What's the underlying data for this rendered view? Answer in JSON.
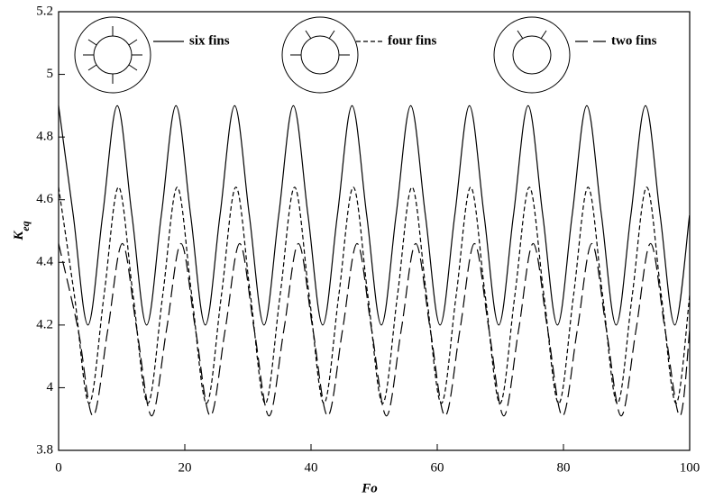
{
  "chart_data": {
    "type": "line",
    "xlabel": "Fo",
    "ylabel": "K",
    "ylabel_subscript": "eq",
    "xlim": [
      0,
      100
    ],
    "xticks": [
      0,
      20,
      40,
      60,
      80,
      100
    ],
    "ylim": [
      3.8,
      5.2
    ],
    "yticks": [
      3.8,
      4,
      4.2,
      4.4,
      4.6,
      4.8,
      5,
      5.2
    ],
    "grid": false,
    "series": [
      {
        "name": "six fins",
        "color": "#000000",
        "dash": "solid",
        "x": [
          0,
          2.325,
          4.65,
          6.975,
          9.3,
          11.625,
          13.95,
          16.275,
          18.6,
          20.925,
          23.25,
          25.575,
          27.9,
          30.225,
          32.55,
          34.875,
          37.2,
          39.525,
          41.85,
          44.175,
          46.5,
          48.825,
          51.15,
          53.475,
          55.8,
          58.125,
          60.45,
          62.775,
          65.1,
          67.425,
          69.75,
          72.075,
          74.4,
          76.725,
          79.05,
          81.375,
          83.7,
          86.025,
          88.35,
          90.675,
          93,
          95.325,
          97.65,
          99.975
        ],
        "values": [
          4.9,
          4.55,
          4.2,
          4.55,
          4.9,
          4.55,
          4.2,
          4.55,
          4.9,
          4.55,
          4.2,
          4.55,
          4.9,
          4.55,
          4.2,
          4.55,
          4.9,
          4.55,
          4.2,
          4.55,
          4.9,
          4.55,
          4.2,
          4.55,
          4.9,
          4.55,
          4.2,
          4.55,
          4.9,
          4.55,
          4.2,
          4.55,
          4.9,
          4.55,
          4.2,
          4.55,
          4.9,
          4.55,
          4.2,
          4.55,
          4.9,
          4.55,
          4.2,
          4.55
        ]
      },
      {
        "name": "four fins",
        "color": "#000000",
        "dash": "dashed",
        "x": [
          0,
          2.5,
          4.85,
          7.2,
          9.5,
          11.8,
          14.15,
          16.5,
          18.8,
          21.1,
          23.45,
          25.8,
          28.1,
          30.4,
          32.75,
          35.1,
          37.4,
          39.7,
          42.05,
          44.4,
          46.7,
          49,
          51.35,
          53.7,
          56,
          58.3,
          60.65,
          63,
          65.3,
          67.6,
          69.95,
          72.3,
          74.6,
          76.9,
          79.25,
          81.6,
          83.9,
          86.2,
          88.55,
          90.9,
          93.2,
          95.5,
          97.85,
          100
        ],
        "values": [
          4.64,
          4.295,
          3.95,
          4.295,
          4.64,
          4.295,
          3.95,
          4.295,
          4.64,
          4.295,
          3.95,
          4.295,
          4.64,
          4.295,
          3.95,
          4.295,
          4.64,
          4.295,
          3.95,
          4.295,
          4.64,
          4.295,
          3.95,
          4.295,
          4.64,
          4.295,
          3.95,
          4.295,
          4.64,
          4.295,
          3.95,
          4.295,
          4.64,
          4.295,
          3.95,
          4.295,
          4.64,
          4.295,
          3.95,
          4.295,
          4.64,
          4.295,
          3.95,
          4.295
        ]
      },
      {
        "name": "two fins",
        "color": "#000000",
        "dash": "longdash",
        "x": [
          0,
          3.1,
          5.45,
          7.8,
          10.1,
          12.4,
          14.75,
          17.1,
          19.4,
          21.7,
          24.05,
          26.4,
          28.7,
          31,
          33.35,
          35.7,
          38,
          40.3,
          42.65,
          45,
          47.3,
          49.6,
          51.95,
          54.3,
          56.6,
          58.9,
          61.25,
          63.6,
          65.9,
          68.2,
          70.55,
          72.9,
          75.2,
          77.5,
          79.85,
          82.2,
          84.5,
          86.8,
          89.15,
          91.5,
          93.8,
          96.1,
          98.45,
          100
        ],
        "values": [
          4.46,
          4.185,
          3.91,
          4.185,
          4.46,
          4.185,
          3.91,
          4.185,
          4.46,
          4.185,
          3.91,
          4.185,
          4.46,
          4.185,
          3.91,
          4.185,
          4.46,
          4.185,
          3.91,
          4.185,
          4.46,
          4.185,
          3.91,
          4.185,
          4.46,
          4.185,
          3.91,
          4.185,
          4.46,
          4.185,
          3.91,
          4.185,
          4.46,
          4.185,
          3.91,
          4.185,
          4.46,
          4.185,
          3.91,
          4.185,
          4.46,
          4.185,
          3.91,
          4.185
        ]
      }
    ]
  }
}
